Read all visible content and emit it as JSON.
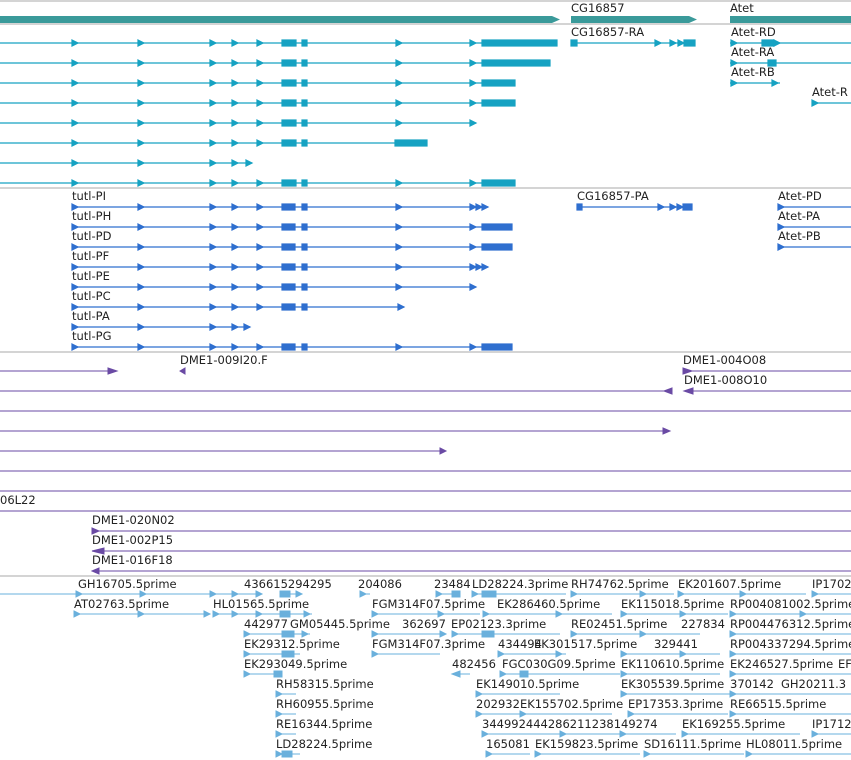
{
  "colors": {
    "gene": "#3a9a9a",
    "transcript": "#16a2c2",
    "protein": "#2f6fcf",
    "clone": "#6a4aa4",
    "est": "#6ab0dc",
    "divider": "#a8a8a8"
  },
  "genes": {
    "labels": [
      "CG16857",
      "Atet"
    ]
  },
  "transcripts": {
    "labels": [
      "CG16857-RA",
      "Atet-RD",
      "Atet-RA",
      "Atet-RB",
      "Atet-R"
    ]
  },
  "proteins": {
    "labels": [
      "tutl-PI",
      "CG16857-PA",
      "Atet-PD",
      "tutl-PH",
      "Atet-PA",
      "tutl-PD",
      "Atet-PB",
      "tutl-PF",
      "tutl-PE",
      "tutl-PC",
      "tutl-PA",
      "tutl-PG"
    ]
  },
  "clones": {
    "labels": [
      "DME1-009I20.F",
      "DME1-004O08",
      "DME1-008O10",
      "06L22",
      "DME1-020N02",
      "DME1-002P15",
      "DME1-016F18"
    ]
  },
  "ests": {
    "labels": [
      "GH16705.5prime",
      "436615294295",
      "204086",
      "23484",
      "LD28224.3prime",
      "RH74762.5prime",
      "EK201607.5prime",
      "IP1702",
      "AT02763.5prime",
      "HL01565.5prime",
      "FGM314F07.5prime",
      "EK286460.5prime",
      "EK115018.5prime",
      "RP004081002.5prime",
      "442977",
      "GM05445.5prime",
      "362697",
      "EP02123.3prime",
      "RE02451.5prime",
      "227834",
      "RP004476312.5prime",
      "EK29312.5prime",
      "FGM314F07.3prime",
      "434494",
      "EK301517.5prime",
      "329441",
      "RP004337294.5prime",
      "EK293049.5prime",
      "482456",
      "FGC030G09.5prime",
      "EK110610.5prime",
      "EK246527.5prime",
      "EF",
      "RH58315.5prime",
      "EK149010.5prime",
      "EK305539.5prime",
      "370142",
      "GH20211.3",
      "RH60955.5prime",
      "202932",
      "EK155702.5prime",
      "EP17353.3prime",
      "RE66515.5prime",
      "RE16344.5prime",
      "344992444286211238149274",
      "EK169255.5prime",
      "IP1712",
      "LD28224.5prime",
      "165081",
      "EK159823.5prime",
      "SD16111.5prime",
      "HL08011.5prime"
    ]
  }
}
